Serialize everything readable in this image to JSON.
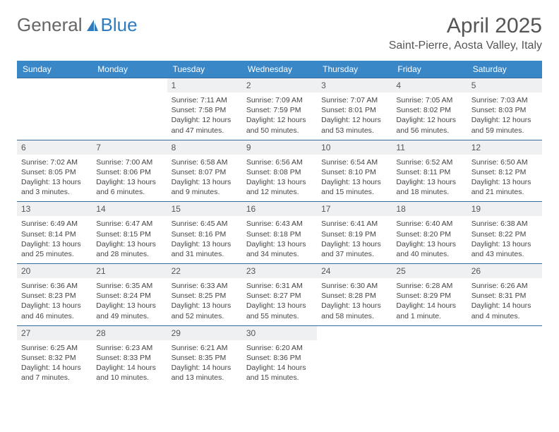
{
  "logo": {
    "part1": "General",
    "part2": "Blue"
  },
  "title": "April 2025",
  "location": "Saint-Pierre, Aosta Valley, Italy",
  "columns": [
    "Sunday",
    "Monday",
    "Tuesday",
    "Wednesday",
    "Thursday",
    "Friday",
    "Saturday"
  ],
  "header_bg": "#3a87c8",
  "header_fg": "#ffffff",
  "daynum_bg": "#eef0f2",
  "row_border": "#3a6a9a",
  "text_color": "#444444",
  "font_size_body": 10.5,
  "weeks": [
    [
      {
        "n": "",
        "sr": "",
        "ss": "",
        "dl1": "",
        "dl2": "",
        "empty": true
      },
      {
        "n": "",
        "sr": "",
        "ss": "",
        "dl1": "",
        "dl2": "",
        "empty": true
      },
      {
        "n": "1",
        "sr": "Sunrise: 7:11 AM",
        "ss": "Sunset: 7:58 PM",
        "dl1": "Daylight: 12 hours",
        "dl2": "and 47 minutes."
      },
      {
        "n": "2",
        "sr": "Sunrise: 7:09 AM",
        "ss": "Sunset: 7:59 PM",
        "dl1": "Daylight: 12 hours",
        "dl2": "and 50 minutes."
      },
      {
        "n": "3",
        "sr": "Sunrise: 7:07 AM",
        "ss": "Sunset: 8:01 PM",
        "dl1": "Daylight: 12 hours",
        "dl2": "and 53 minutes."
      },
      {
        "n": "4",
        "sr": "Sunrise: 7:05 AM",
        "ss": "Sunset: 8:02 PM",
        "dl1": "Daylight: 12 hours",
        "dl2": "and 56 minutes."
      },
      {
        "n": "5",
        "sr": "Sunrise: 7:03 AM",
        "ss": "Sunset: 8:03 PM",
        "dl1": "Daylight: 12 hours",
        "dl2": "and 59 minutes."
      }
    ],
    [
      {
        "n": "6",
        "sr": "Sunrise: 7:02 AM",
        "ss": "Sunset: 8:05 PM",
        "dl1": "Daylight: 13 hours",
        "dl2": "and 3 minutes."
      },
      {
        "n": "7",
        "sr": "Sunrise: 7:00 AM",
        "ss": "Sunset: 8:06 PM",
        "dl1": "Daylight: 13 hours",
        "dl2": "and 6 minutes."
      },
      {
        "n": "8",
        "sr": "Sunrise: 6:58 AM",
        "ss": "Sunset: 8:07 PM",
        "dl1": "Daylight: 13 hours",
        "dl2": "and 9 minutes."
      },
      {
        "n": "9",
        "sr": "Sunrise: 6:56 AM",
        "ss": "Sunset: 8:08 PM",
        "dl1": "Daylight: 13 hours",
        "dl2": "and 12 minutes."
      },
      {
        "n": "10",
        "sr": "Sunrise: 6:54 AM",
        "ss": "Sunset: 8:10 PM",
        "dl1": "Daylight: 13 hours",
        "dl2": "and 15 minutes."
      },
      {
        "n": "11",
        "sr": "Sunrise: 6:52 AM",
        "ss": "Sunset: 8:11 PM",
        "dl1": "Daylight: 13 hours",
        "dl2": "and 18 minutes."
      },
      {
        "n": "12",
        "sr": "Sunrise: 6:50 AM",
        "ss": "Sunset: 8:12 PM",
        "dl1": "Daylight: 13 hours",
        "dl2": "and 21 minutes."
      }
    ],
    [
      {
        "n": "13",
        "sr": "Sunrise: 6:49 AM",
        "ss": "Sunset: 8:14 PM",
        "dl1": "Daylight: 13 hours",
        "dl2": "and 25 minutes."
      },
      {
        "n": "14",
        "sr": "Sunrise: 6:47 AM",
        "ss": "Sunset: 8:15 PM",
        "dl1": "Daylight: 13 hours",
        "dl2": "and 28 minutes."
      },
      {
        "n": "15",
        "sr": "Sunrise: 6:45 AM",
        "ss": "Sunset: 8:16 PM",
        "dl1": "Daylight: 13 hours",
        "dl2": "and 31 minutes."
      },
      {
        "n": "16",
        "sr": "Sunrise: 6:43 AM",
        "ss": "Sunset: 8:18 PM",
        "dl1": "Daylight: 13 hours",
        "dl2": "and 34 minutes."
      },
      {
        "n": "17",
        "sr": "Sunrise: 6:41 AM",
        "ss": "Sunset: 8:19 PM",
        "dl1": "Daylight: 13 hours",
        "dl2": "and 37 minutes."
      },
      {
        "n": "18",
        "sr": "Sunrise: 6:40 AM",
        "ss": "Sunset: 8:20 PM",
        "dl1": "Daylight: 13 hours",
        "dl2": "and 40 minutes."
      },
      {
        "n": "19",
        "sr": "Sunrise: 6:38 AM",
        "ss": "Sunset: 8:22 PM",
        "dl1": "Daylight: 13 hours",
        "dl2": "and 43 minutes."
      }
    ],
    [
      {
        "n": "20",
        "sr": "Sunrise: 6:36 AM",
        "ss": "Sunset: 8:23 PM",
        "dl1": "Daylight: 13 hours",
        "dl2": "and 46 minutes."
      },
      {
        "n": "21",
        "sr": "Sunrise: 6:35 AM",
        "ss": "Sunset: 8:24 PM",
        "dl1": "Daylight: 13 hours",
        "dl2": "and 49 minutes."
      },
      {
        "n": "22",
        "sr": "Sunrise: 6:33 AM",
        "ss": "Sunset: 8:25 PM",
        "dl1": "Daylight: 13 hours",
        "dl2": "and 52 minutes."
      },
      {
        "n": "23",
        "sr": "Sunrise: 6:31 AM",
        "ss": "Sunset: 8:27 PM",
        "dl1": "Daylight: 13 hours",
        "dl2": "and 55 minutes."
      },
      {
        "n": "24",
        "sr": "Sunrise: 6:30 AM",
        "ss": "Sunset: 8:28 PM",
        "dl1": "Daylight: 13 hours",
        "dl2": "and 58 minutes."
      },
      {
        "n": "25",
        "sr": "Sunrise: 6:28 AM",
        "ss": "Sunset: 8:29 PM",
        "dl1": "Daylight: 14 hours",
        "dl2": "and 1 minute."
      },
      {
        "n": "26",
        "sr": "Sunrise: 6:26 AM",
        "ss": "Sunset: 8:31 PM",
        "dl1": "Daylight: 14 hours",
        "dl2": "and 4 minutes."
      }
    ],
    [
      {
        "n": "27",
        "sr": "Sunrise: 6:25 AM",
        "ss": "Sunset: 8:32 PM",
        "dl1": "Daylight: 14 hours",
        "dl2": "and 7 minutes."
      },
      {
        "n": "28",
        "sr": "Sunrise: 6:23 AM",
        "ss": "Sunset: 8:33 PM",
        "dl1": "Daylight: 14 hours",
        "dl2": "and 10 minutes."
      },
      {
        "n": "29",
        "sr": "Sunrise: 6:21 AM",
        "ss": "Sunset: 8:35 PM",
        "dl1": "Daylight: 14 hours",
        "dl2": "and 13 minutes."
      },
      {
        "n": "30",
        "sr": "Sunrise: 6:20 AM",
        "ss": "Sunset: 8:36 PM",
        "dl1": "Daylight: 14 hours",
        "dl2": "and 15 minutes."
      },
      {
        "n": "",
        "sr": "",
        "ss": "",
        "dl1": "",
        "dl2": "",
        "empty": true
      },
      {
        "n": "",
        "sr": "",
        "ss": "",
        "dl1": "",
        "dl2": "",
        "empty": true
      },
      {
        "n": "",
        "sr": "",
        "ss": "",
        "dl1": "",
        "dl2": "",
        "empty": true
      }
    ]
  ]
}
